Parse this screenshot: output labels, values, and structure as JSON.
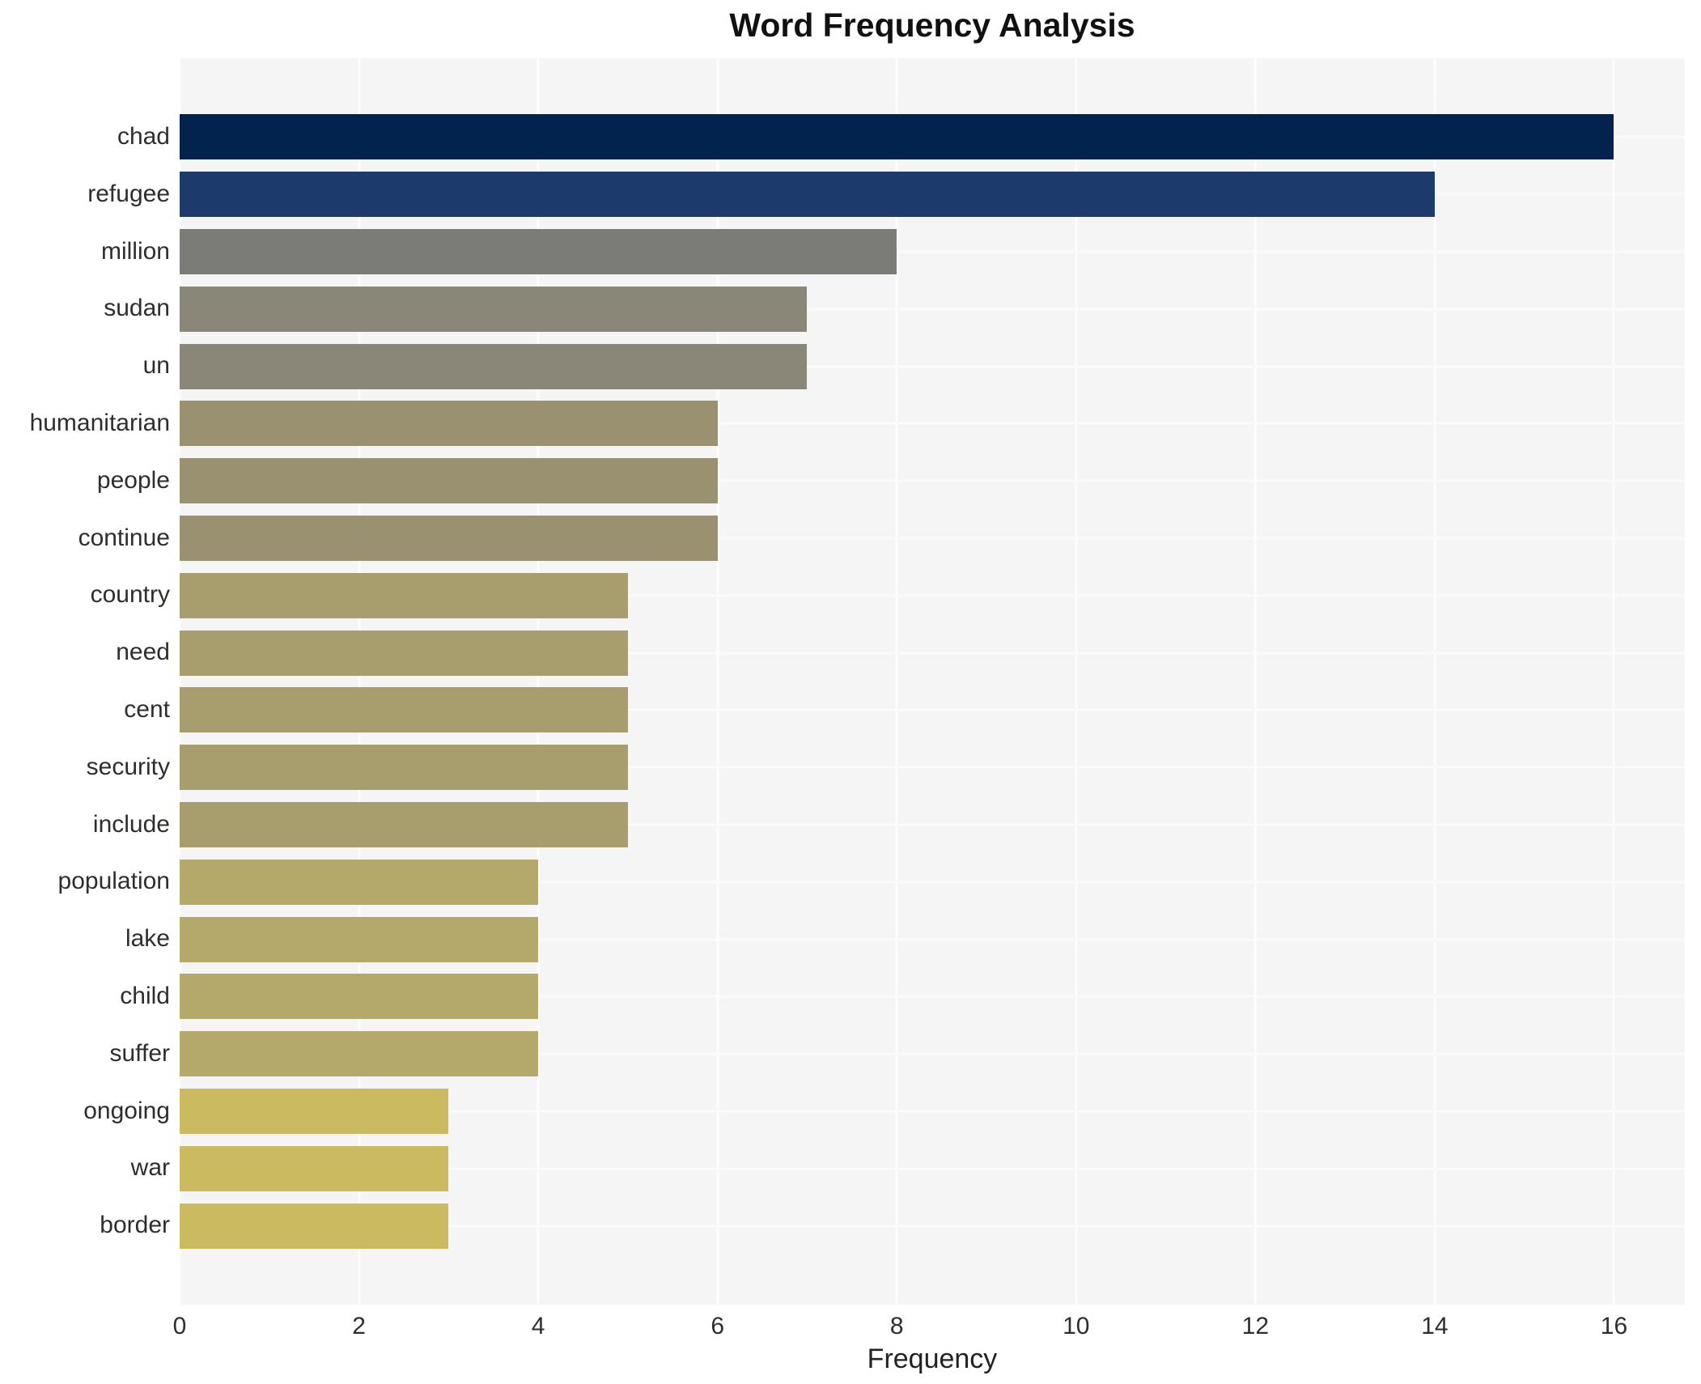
{
  "chart_data": {
    "type": "bar",
    "orientation": "horizontal",
    "title": "Word Frequency Analysis",
    "xlabel": "Frequency",
    "ylabel": "",
    "categories": [
      "chad",
      "refugee",
      "million",
      "sudan",
      "un",
      "humanitarian",
      "people",
      "continue",
      "country",
      "need",
      "cent",
      "security",
      "include",
      "population",
      "lake",
      "child",
      "suffer",
      "ongoing",
      "war",
      "border"
    ],
    "values": [
      16,
      14,
      8,
      7,
      7,
      6,
      6,
      6,
      5,
      5,
      5,
      5,
      5,
      4,
      4,
      4,
      4,
      3,
      3,
      3
    ],
    "bar_colors": [
      "#02234e",
      "#1c3a6b",
      "#7b7b77",
      "#8a8779",
      "#8a8779",
      "#999170",
      "#999170",
      "#999170",
      "#a89e6d",
      "#a89e6d",
      "#a89e6d",
      "#a89e6d",
      "#a89e6d",
      "#b4a96a",
      "#b4a96a",
      "#b4a96a",
      "#b4a96a",
      "#ccba60",
      "#ccba60",
      "#ccba60"
    ],
    "xticks": [
      0,
      2,
      4,
      6,
      8,
      10,
      12,
      14,
      16
    ],
    "xlim": [
      0,
      16.79
    ],
    "grid": true,
    "legend": null,
    "plot_background": "#f5f5f6",
    "grid_color": "#fdfdfd",
    "figure_background": "#ffffff"
  }
}
